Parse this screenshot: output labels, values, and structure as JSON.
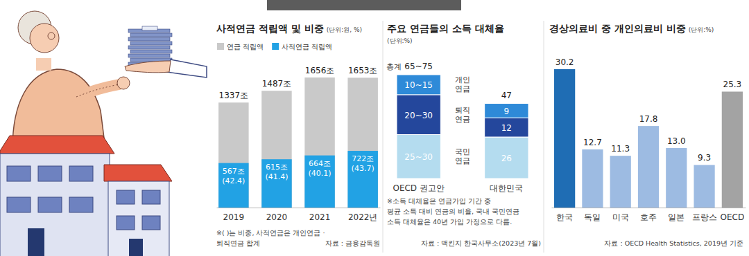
{
  "chart_data": [
    {
      "type": "bar",
      "title": "사적연금 적립액 및 비중",
      "unit": "(단위:원, %)",
      "categories": [
        "2019",
        "2020",
        "2021",
        "2022년"
      ],
      "stacked": false,
      "data_labels": true,
      "tick_labels": "x",
      "legend": "top-left",
      "ylim": [
        0,
        1656
      ],
      "series": [
        {
          "name": "연금 적립액",
          "color": "#c9c9c9",
          "values": [
            1337,
            1487,
            1656,
            1653
          ],
          "value_labels": [
            "1337조",
            "1487조",
            "1656조",
            "1653조"
          ]
        },
        {
          "name": "사적연금 적립액",
          "color": "#22a2e4",
          "values": [
            567,
            615,
            664,
            722
          ],
          "value_labels": [
            "567조",
            "615조",
            "664조",
            "722조"
          ],
          "shares": [
            42.4,
            41.4,
            40.1,
            43.7
          ],
          "share_labels": [
            "(42.4)",
            "(41.4)",
            "(40.1)",
            "(43.7)"
          ]
        }
      ],
      "notes": [
        "※(   )는 비중, 사적연금은 개인연금 ·",
        "퇴직연금 합계"
      ],
      "source": "자료 : 금융감독원"
    },
    {
      "type": "bar",
      "title": "주요 연금들의 소득 대체율",
      "unit": "(단위:%)",
      "categories": [
        "OECD 권고안",
        "대한민국"
      ],
      "stacked": true,
      "data_labels": true,
      "tick_labels": "x",
      "ylim": [
        0,
        65
      ],
      "series": [
        {
          "name": "국민연금",
          "color": "#b4dcef",
          "values": [
            27.5,
            26
          ],
          "value_labels": [
            "25~30",
            "26"
          ]
        },
        {
          "name": "퇴직연금",
          "color": "#24479c",
          "values": [
            25,
            12
          ],
          "value_labels": [
            "20~30",
            "12"
          ]
        },
        {
          "name": "개인연금",
          "color": "#2e8ad8",
          "values": [
            12.5,
            9
          ],
          "value_labels": [
            "10~15",
            "9"
          ]
        }
      ],
      "total_title": "총계",
      "totals": [
        "65~75",
        "47"
      ],
      "notes": [
        "※소득 대체율은 연금가입 기간 중",
        "평균 소득 대비 연금의 비율, 국내 국민연금",
        "소득 대체율은 40년 가입 가정으로 다름."
      ],
      "source": "자료 : 맥킨지 한국사무소(2023년 7월)"
    },
    {
      "type": "bar",
      "title": "경상의료비 중 개인의료비 비중",
      "unit": "(단위:%)",
      "categories": [
        "한국",
        "독일",
        "미국",
        "호주",
        "일본",
        "프랑스",
        "OECD"
      ],
      "values": [
        30.2,
        12.7,
        11.3,
        17.8,
        13.0,
        9.3,
        25.3
      ],
      "value_labels": [
        "30.2",
        "12.7",
        "11.3",
        "17.8",
        "13.0",
        "9.3",
        "25.3"
      ],
      "colors": [
        "#1f6db4",
        "#9dbbe2",
        "#9dbbe2",
        "#9dbbe2",
        "#9dbbe2",
        "#9dbbe2",
        "#a3a3a3"
      ],
      "data_labels": true,
      "tick_labels": "x",
      "ylim": [
        0,
        30.2
      ],
      "source": "자료 : OECD Health Statistics, 2019년 기준"
    }
  ]
}
